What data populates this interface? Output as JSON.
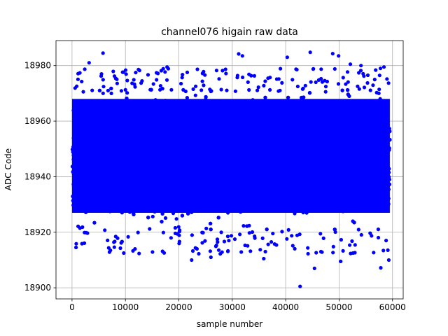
{
  "chart_data": {
    "type": "scatter",
    "title": "channel076 higain raw data",
    "xlabel": "sample number",
    "ylabel": "ADC Code",
    "xlim": [
      -3000,
      62000
    ],
    "ylim": [
      18896,
      18989
    ],
    "xticks": [
      0,
      10000,
      20000,
      30000,
      40000,
      50000,
      60000
    ],
    "yticks": [
      18900,
      18920,
      18940,
      18960,
      18980
    ],
    "grid": true,
    "marker_color": "#0000ff",
    "n_points": 59500,
    "band": {
      "x_range": [
        0,
        59500
      ],
      "y_core": [
        18927,
        18968
      ],
      "y_typical_min": 18920,
      "y_typical_max": 18978
    },
    "outliers": [
      {
        "x": 5800,
        "y": 18984.5
      },
      {
        "x": 31200,
        "y": 18984.2
      },
      {
        "x": 31900,
        "y": 18983.5
      },
      {
        "x": 40300,
        "y": 18983.0
      },
      {
        "x": 44600,
        "y": 18984.8
      },
      {
        "x": 48800,
        "y": 18984.3
      },
      {
        "x": 49900,
        "y": 18983.5
      },
      {
        "x": 3200,
        "y": 18981.0
      },
      {
        "x": 17800,
        "y": 18979.5
      },
      {
        "x": 52100,
        "y": 18980.5
      },
      {
        "x": 54100,
        "y": 18980.0
      },
      {
        "x": 58400,
        "y": 18979.5
      },
      {
        "x": 42700,
        "y": 18900.5
      },
      {
        "x": 45400,
        "y": 18907.0
      },
      {
        "x": 50300,
        "y": 18909.5
      },
      {
        "x": 22400,
        "y": 18910.0
      },
      {
        "x": 59300,
        "y": 18910.0
      },
      {
        "x": 57800,
        "y": 18907.2
      },
      {
        "x": 26000,
        "y": 18911.0
      },
      {
        "x": 35900,
        "y": 18910.5
      },
      {
        "x": 7200,
        "y": 18913.5
      },
      {
        "x": 11800,
        "y": 18914.0
      },
      {
        "x": 33400,
        "y": 18913.2
      },
      {
        "x": 46600,
        "y": 18913.0
      },
      {
        "x": 52600,
        "y": 18912.5
      }
    ]
  }
}
